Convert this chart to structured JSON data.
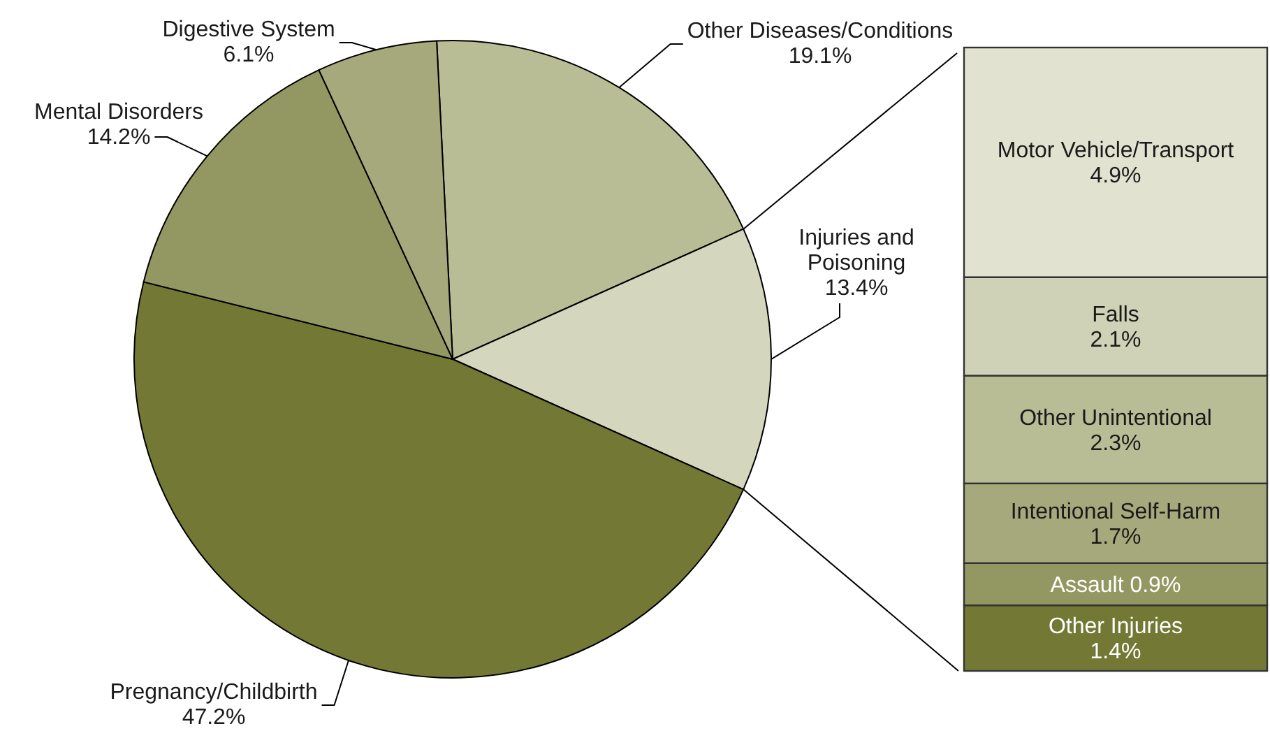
{
  "chart_data": [
    {
      "type": "pie",
      "categories": [
        "Other Diseases/Conditions",
        "Injuries and Poisoning",
        "Pregnancy/Childbirth",
        "Mental Disorders",
        "Digestive System"
      ],
      "values": [
        19.1,
        13.4,
        47.2,
        14.2,
        6.1
      ],
      "colors": [
        "#b8bd96",
        "#d4d6bd",
        "#737935",
        "#939862",
        "#a6a97b"
      ],
      "value_labels": [
        "19.1%",
        "13.4%",
        "47.2%",
        "14.2%",
        "6.1%"
      ]
    },
    {
      "type": "bar",
      "stacked": true,
      "categories": [
        null
      ],
      "series": [
        {
          "name": "Other Injuries",
          "color": "#737935",
          "values": [
            1.4
          ],
          "value_labels": [
            "1.4%"
          ]
        },
        {
          "name": "Assault",
          "color": "#939862",
          "values": [
            0.9
          ],
          "value_labels": [
            "0.9%"
          ]
        },
        {
          "name": "Intentional Self-Harm",
          "color": "#a6a97b",
          "values": [
            1.7
          ],
          "value_labels": [
            "1.7%"
          ]
        },
        {
          "name": "Other Unintentional",
          "color": "#b8bd96",
          "values": [
            2.3
          ],
          "value_labels": [
            "2.3%"
          ]
        },
        {
          "name": "Falls",
          "color": "#cfd2b6",
          "values": [
            2.1
          ],
          "value_labels": [
            "2.1%"
          ]
        },
        {
          "name": "Motor Vehicle/Transport",
          "color": "#e1e2d0",
          "values": [
            4.9
          ],
          "value_labels": [
            "4.9%"
          ]
        }
      ]
    }
  ]
}
